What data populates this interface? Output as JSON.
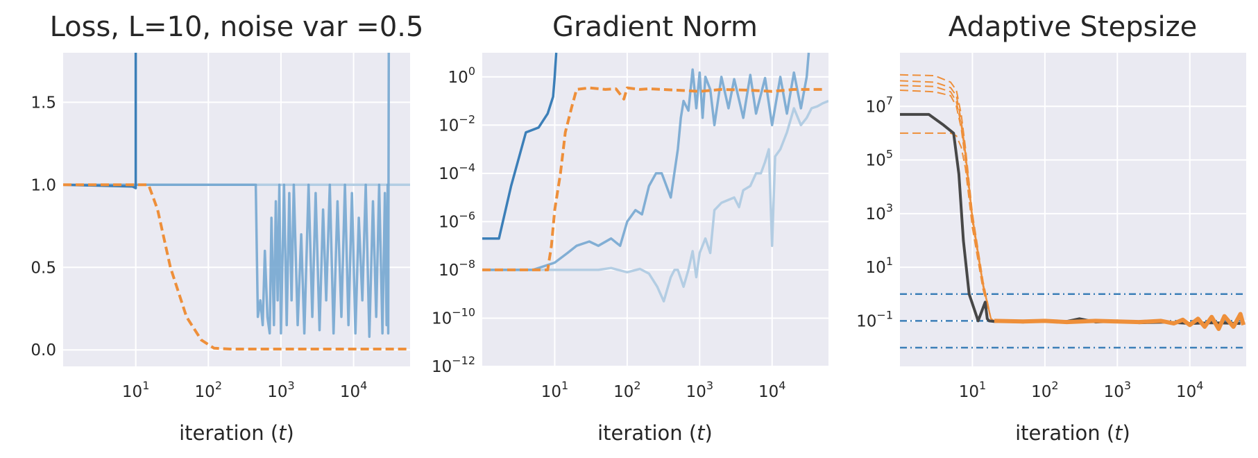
{
  "colors": {
    "blue": "#3c7fb8",
    "blue_mid": "#6fa3cf",
    "blue_light": "#b3cde3",
    "orange": "#ee8f3a",
    "dark": "#474747"
  },
  "chart_data": [
    {
      "type": "line",
      "title": "Loss, L=10, noise var =0.5",
      "xlabel": "iteration (t)",
      "ylabel": "",
      "xscale": "log",
      "xlim": [
        1,
        60000
      ],
      "ylim": [
        -0.1,
        1.8
      ],
      "yticks": [
        "0.0",
        "0.5",
        "1.0",
        "1.5"
      ],
      "xticks": [
        {
          "base": "10",
          "exp": "1"
        },
        {
          "base": "10",
          "exp": "2"
        },
        {
          "base": "10",
          "exp": "3"
        },
        {
          "base": "10",
          "exp": "4"
        }
      ],
      "grid": true,
      "series": [
        {
          "color": "#b3cde3",
          "style": "solid",
          "x": [
            1,
            30000,
            30000,
            60000
          ],
          "y": [
            1.0,
            1.0,
            1.0,
            1.0
          ]
        },
        {
          "color": "#6fa3cf",
          "style": "solid",
          "x": [
            1,
            450,
            480,
            520,
            560,
            600,
            650,
            700,
            740,
            800,
            850,
            900,
            950,
            1000,
            1100,
            1200,
            1300,
            1400,
            1500,
            1700,
            1900,
            2100,
            2400,
            2700,
            3000,
            3400,
            3800,
            4200,
            4700,
            5300,
            6000,
            6800,
            7600,
            8500,
            9500,
            10600,
            11800,
            13200,
            14700,
            16500,
            18500,
            20500,
            22500,
            25000,
            27000,
            28500,
            29500,
            30000,
            30500
          ],
          "y": [
            1.0,
            1.0,
            0.2,
            0.3,
            0.15,
            0.6,
            0.2,
            0.1,
            0.8,
            0.15,
            0.9,
            0.3,
            1.0,
            0.1,
            1.0,
            0.15,
            0.95,
            0.3,
            1.0,
            0.15,
            0.7,
            0.1,
            1.0,
            0.2,
            0.95,
            0.12,
            0.85,
            0.3,
            1.0,
            0.1,
            0.9,
            0.2,
            1.0,
            0.15,
            0.95,
            0.1,
            0.8,
            0.3,
            1.0,
            0.08,
            0.9,
            0.2,
            1.0,
            0.1,
            0.95,
            0.15,
            1.0,
            0.1,
            1.8
          ]
        },
        {
          "color": "#3c7fb8",
          "style": "solid",
          "x": [
            1,
            9,
            10,
            10
          ],
          "y": [
            1.0,
            0.99,
            0.98,
            1.8
          ]
        },
        {
          "color": "#ee8f3a",
          "style": "dashed",
          "x": [
            1,
            15,
            20,
            30,
            50,
            80,
            120,
            200,
            500,
            1000,
            5000,
            20000,
            60000
          ],
          "y": [
            1.0,
            1.0,
            0.85,
            0.5,
            0.2,
            0.06,
            0.01,
            0.005,
            0.005,
            0.005,
            0.005,
            0.005,
            0.005
          ]
        }
      ]
    },
    {
      "type": "line",
      "title": "Gradient Norm",
      "xlabel": "iteration (t)",
      "ylabel": "",
      "xscale": "log",
      "yscale": "log",
      "xlim": [
        1,
        60000
      ],
      "ylim": [
        1e-12,
        10
      ],
      "yticks": [
        {
          "base": "10",
          "exp": "0"
        },
        {
          "base": "10",
          "exp": "−2"
        },
        {
          "base": "10",
          "exp": "−4"
        },
        {
          "base": "10",
          "exp": "−6"
        },
        {
          "base": "10",
          "exp": "−8"
        },
        {
          "base": "10",
          "exp": "−10"
        },
        {
          "base": "10",
          "exp": "−12"
        }
      ],
      "xticks": [
        {
          "base": "10",
          "exp": "1"
        },
        {
          "base": "10",
          "exp": "2"
        },
        {
          "base": "10",
          "exp": "3"
        },
        {
          "base": "10",
          "exp": "4"
        }
      ],
      "grid": true,
      "series": [
        {
          "color": "#b3cde3",
          "style": "solid",
          "x": [
            1,
            40,
            60,
            100,
            150,
            200,
            260,
            320,
            400,
            450,
            500,
            600,
            700,
            800,
            900,
            1000,
            1200,
            1400,
            1600,
            2000,
            2500,
            3000,
            3500,
            4000,
            5000,
            6000,
            7000,
            8000,
            9000,
            10000,
            11000,
            13000,
            16000,
            20000,
            25000,
            30000,
            35000,
            42000,
            50000,
            60000
          ],
          "y": [
            1e-08,
            1e-08,
            1.2e-08,
            8e-09,
            1.1e-08,
            7e-09,
            2e-09,
            5e-10,
            5e-09,
            1e-08,
            1e-08,
            2e-09,
            1e-08,
            6e-08,
            5e-09,
            5e-08,
            2e-07,
            5e-08,
            3e-06,
            6e-06,
            8e-06,
            1e-05,
            4e-06,
            2e-05,
            3e-05,
            0.0001,
            0.0001,
            0.0003,
            0.001,
            1e-07,
            0.0005,
            0.001,
            0.005,
            0.05,
            0.01,
            0.02,
            0.05,
            0.06,
            0.08,
            0.1
          ]
        },
        {
          "color": "#6fa3cf",
          "style": "solid",
          "x": [
            1,
            5,
            10,
            15,
            20,
            30,
            40,
            60,
            80,
            100,
            130,
            160,
            200,
            250,
            300,
            400,
            500,
            550,
            600,
            700,
            800,
            900,
            1000,
            1100,
            1200,
            1400,
            1600,
            2000,
            2500,
            3000,
            4000,
            5000,
            6000,
            8000,
            10000,
            13000,
            16000,
            20000,
            25000,
            30000,
            32000
          ],
          "y": [
            1e-08,
            1e-08,
            2e-08,
            5e-08,
            1e-07,
            1.5e-07,
            1e-07,
            2e-07,
            1e-07,
            1e-06,
            3e-06,
            2e-06,
            3e-05,
            0.0001,
            0.0001,
            1e-05,
            0.001,
            0.02,
            0.1,
            0.04,
            2.0,
            0.05,
            1.5,
            0.02,
            1.0,
            0.3,
            0.01,
            1.0,
            0.05,
            0.8,
            0.02,
            1.2,
            0.03,
            0.9,
            0.01,
            1.0,
            0.03,
            1.5,
            0.05,
            1.0,
            10
          ]
        },
        {
          "color": "#3c7fb8",
          "style": "solid",
          "x": [
            1,
            1.7,
            2.5,
            4,
            6,
            8,
            9.5,
            10,
            10.5
          ],
          "y": [
            2e-07,
            2e-07,
            3e-05,
            0.005,
            0.008,
            0.03,
            0.15,
            1.0,
            10
          ]
        },
        {
          "color": "#ee8f3a",
          "style": "dashed",
          "x": [
            1,
            8,
            9,
            10,
            12,
            14,
            17,
            20,
            30,
            50,
            70,
            90,
            100,
            150,
            200,
            300,
            500,
            1000,
            2000,
            5000,
            10000,
            20000,
            50000
          ],
          "y": [
            1e-08,
            1e-08,
            1e-07,
            3e-06,
            0.0001,
            0.005,
            0.05,
            0.3,
            0.35,
            0.3,
            0.32,
            0.12,
            0.35,
            0.3,
            0.32,
            0.3,
            0.28,
            0.25,
            0.3,
            0.28,
            0.25,
            0.3,
            0.3
          ]
        }
      ]
    },
    {
      "type": "line",
      "title": "Adaptive Stepsize",
      "xlabel": "iteration (t)",
      "ylabel": "",
      "xscale": "log",
      "yscale": "log",
      "xlim": [
        1,
        60000
      ],
      "ylim": [
        0.002,
        1000000000.0
      ],
      "yticks": [
        {
          "base": "10",
          "exp": "7"
        },
        {
          "base": "10",
          "exp": "5"
        },
        {
          "base": "10",
          "exp": "3"
        },
        {
          "base": "10",
          "exp": "1"
        },
        {
          "base": "10",
          "exp": "−1"
        }
      ],
      "xticks": [
        {
          "base": "10",
          "exp": "1"
        },
        {
          "base": "10",
          "exp": "2"
        },
        {
          "base": "10",
          "exp": "3"
        },
        {
          "base": "10",
          "exp": "4"
        }
      ],
      "grid": true,
      "series": [
        {
          "color": "#3c7fb8",
          "style": "dashdot",
          "x": [
            1,
            60000
          ],
          "y": [
            1.0,
            1.0
          ]
        },
        {
          "color": "#3c7fb8",
          "style": "dashdot",
          "x": [
            1,
            60000
          ],
          "y": [
            0.1,
            0.1
          ]
        },
        {
          "color": "#3c7fb8",
          "style": "dashdot",
          "x": [
            1,
            60000
          ],
          "y": [
            0.01,
            0.01
          ]
        },
        {
          "color": "#ee8f3a",
          "style": "dashed",
          "x": [
            1,
            3,
            5,
            6,
            7,
            8,
            10,
            14,
            18,
            20
          ],
          "y": [
            150000000.0,
            140000000.0,
            80000000.0,
            40000000.0,
            5000000.0,
            300000.0,
            1000.0,
            3,
            0.12,
            0.1
          ]
        },
        {
          "color": "#ee8f3a",
          "style": "dashed",
          "x": [
            1,
            3,
            5,
            6,
            7,
            8,
            10,
            14,
            18,
            20
          ],
          "y": [
            90000000.0,
            80000000.0,
            50000000.0,
            25000000.0,
            3000000.0,
            200000.0,
            800,
            2.5,
            0.12,
            0.1
          ]
        },
        {
          "color": "#ee8f3a",
          "style": "dashed",
          "x": [
            1,
            3,
            5,
            6,
            7,
            8,
            10,
            14,
            18,
            20
          ],
          "y": [
            60000000.0,
            55000000.0,
            35000000.0,
            15000000.0,
            2000000.0,
            150000.0,
            600,
            2,
            0.12,
            0.1
          ]
        },
        {
          "color": "#ee8f3a",
          "style": "dashed",
          "x": [
            1,
            3,
            5,
            6,
            7,
            8,
            10,
            14,
            18,
            20
          ],
          "y": [
            40000000.0,
            35000000.0,
            25000000.0,
            10000000.0,
            1500000.0,
            100000.0,
            500,
            2,
            0.12,
            0.1
          ]
        },
        {
          "color": "#ee8f3a",
          "style": "dashed",
          "x": [
            1,
            4,
            5,
            6,
            7,
            8,
            10,
            14,
            18,
            20
          ],
          "y": [
            1000000.0,
            1000000.0,
            1000000.0,
            800000.0,
            300000.0,
            50000.0,
            300,
            1.5,
            0.12,
            0.1
          ]
        },
        {
          "color": "#474747",
          "style": "solid",
          "x": [
            1,
            2.5,
            4,
            5.5,
            6.5,
            7.5,
            9,
            12,
            15,
            16,
            17,
            20,
            30,
            50,
            100,
            200,
            300,
            500,
            1000,
            2000,
            5000,
            10000,
            20000,
            50000
          ],
          "y": [
            5000000.0,
            5000000.0,
            2000000.0,
            1000000.0,
            30000.0,
            100,
            1,
            0.1,
            0.5,
            0.12,
            0.1,
            0.095,
            0.095,
            0.09,
            0.1,
            0.095,
            0.12,
            0.09,
            0.1,
            0.085,
            0.09,
            0.08,
            0.085,
            0.08
          ]
        },
        {
          "color": "#ee8f3a",
          "style": "solid",
          "x": [
            20,
            50,
            100,
            200,
            500,
            1000,
            2000,
            4000,
            6000,
            8000,
            10000,
            13000,
            16000,
            20000,
            25000,
            30000,
            40000,
            50000,
            55000
          ],
          "y": [
            0.1,
            0.095,
            0.1,
            0.09,
            0.1,
            0.095,
            0.09,
            0.1,
            0.08,
            0.11,
            0.07,
            0.12,
            0.06,
            0.14,
            0.05,
            0.15,
            0.06,
            0.18,
            0.07
          ]
        }
      ]
    }
  ]
}
